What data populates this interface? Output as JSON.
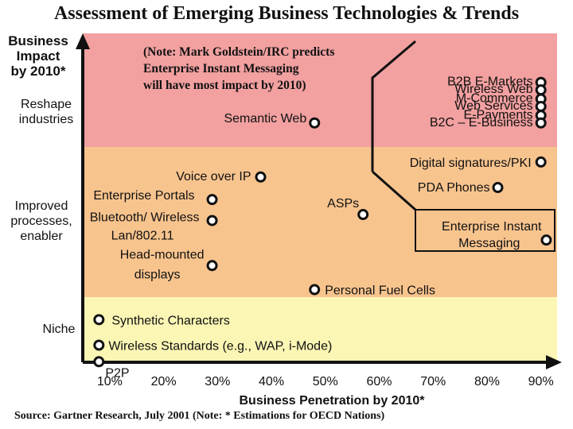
{
  "title": "Assessment of Emerging Business Technologies & Trends",
  "footer": "Source: Gartner Research, July 2001 (Note: * Estimations for OECD Nations)",
  "colors": {
    "top_band": "#f2a0a0",
    "mid_band": "#f8c48e",
    "low_band": "#fbf6b4",
    "axis": "#111111"
  },
  "chart_data": {
    "type": "scatter",
    "title": "Assessment of Emerging Business Technologies & Trends",
    "xlabel": "Business Penetration by 2010*",
    "ylabel": "Business Impact by 2010*",
    "xlim": [
      5,
      93
    ],
    "x_ticks": [
      "10%",
      "20%",
      "30%",
      "40%",
      "50%",
      "60%",
      "70%",
      "80%",
      "90%"
    ],
    "y_categories": [
      "Niche",
      "Improved processes, enabler",
      "Reshape industries"
    ],
    "y_label_lines": [
      "Business",
      "Impact",
      "by 2010*"
    ],
    "y_category_lines": [
      [
        "Reshape",
        "industries"
      ],
      [
        "Improved",
        "processes,",
        "enabler"
      ],
      [
        "Niche"
      ]
    ],
    "note_lines": [
      "(Note: Mark Goldstein/IRC predicts",
      "Enterprise Instant Messaging",
      "will have most impact by 2010)"
    ],
    "points": [
      {
        "label": "B2B E-Markets",
        "x": 90,
        "y": 2.93
      },
      {
        "label": "Wireless Web",
        "x": 90,
        "y": 2.88
      },
      {
        "label": "M-Commerce",
        "x": 90,
        "y": 2.82
      },
      {
        "label": "Web Services",
        "x": 90,
        "y": 2.77
      },
      {
        "label": "E-Payments",
        "x": 90,
        "y": 2.71
      },
      {
        "label": "B2C – E-Business",
        "x": 90,
        "y": 2.66
      },
      {
        "label": "Semantic Web",
        "x": 48,
        "y": 2.66
      },
      {
        "label": "Digital signatures/PKI",
        "x": 90,
        "y": 2.4
      },
      {
        "label": "Voice over IP",
        "x": 38,
        "y": 2.3
      },
      {
        "label": "PDA Phones",
        "x": 82,
        "y": 2.23
      },
      {
        "label": "Enterprise Portals",
        "x": 29,
        "y": 2.15
      },
      {
        "label": "ASPs",
        "x": 57,
        "y": 2.05
      },
      {
        "label": "Bluetooth/ Wireless Lan/802.11",
        "x": 29,
        "y": 2.01
      },
      {
        "label": "Enterprise Instant Messaging",
        "x": 91,
        "y": 1.88
      },
      {
        "label": "Head-mounted displays",
        "x": 29,
        "y": 1.71
      },
      {
        "label": "Personal Fuel Cells",
        "x": 48,
        "y": 1.55
      },
      {
        "label": "Synthetic Characters",
        "x": 8,
        "y": 1.35
      },
      {
        "label": "Wireless Standards (e.g., WAP, i-Mode)",
        "x": 8,
        "y": 1.18
      },
      {
        "label": "P2P",
        "x": 8,
        "y": 1.07
      }
    ],
    "callout_box_label": "Enterprise Instant Messaging",
    "grid": false,
    "legend": "none"
  }
}
